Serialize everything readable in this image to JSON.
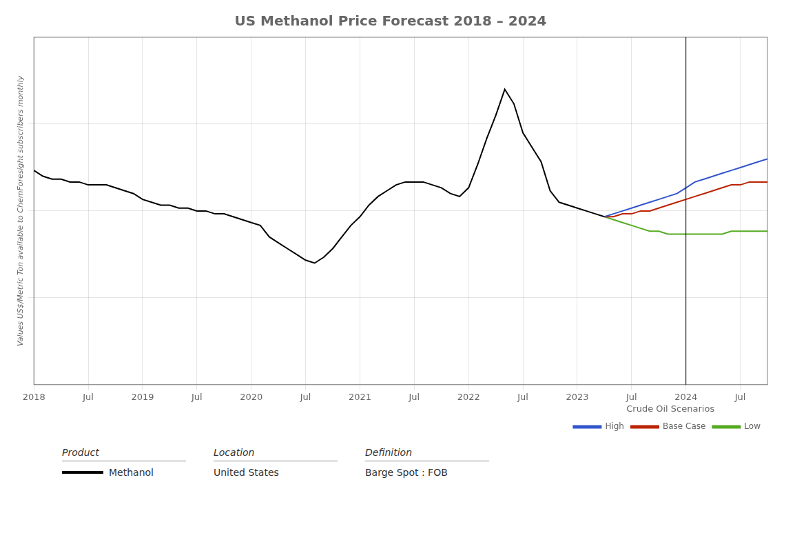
{
  "chart_data": {
    "type": "line",
    "title": "US Methanol Price Forecast 2018 – 2024",
    "ylabel": "Values US$/Metric Ton available to ChemForesight subscribers monthly",
    "series": [
      {
        "color": "#000000",
        "x": [
          2018.0,
          2018.083,
          2018.167,
          2018.25,
          2018.333,
          2018.417,
          2018.5,
          2018.583,
          2018.667,
          2018.75,
          2018.833,
          2018.917,
          2019.0,
          2019.083,
          2019.167,
          2019.25,
          2019.333,
          2019.417,
          2019.5,
          2019.583,
          2019.667,
          2019.75,
          2019.833,
          2019.917,
          2020.0,
          2020.083,
          2020.167,
          2020.25,
          2020.333,
          2020.417,
          2020.5,
          2020.583,
          2020.667,
          2020.75,
          2020.833,
          2020.917,
          2021.0,
          2021.083,
          2021.167,
          2021.25,
          2021.333,
          2021.417,
          2021.5,
          2021.583,
          2021.667,
          2021.75,
          2021.833,
          2021.917,
          2022.0,
          2022.083,
          2022.167,
          2022.25,
          2022.333,
          2022.417,
          2022.5,
          2022.583,
          2022.667,
          2022.75,
          2022.833,
          2022.917,
          2023.0,
          2023.083,
          2023.167,
          2023.25
        ],
        "values": [
          74,
          72,
          71,
          71,
          70,
          70,
          69,
          69,
          69,
          68,
          67,
          66,
          64,
          63,
          62,
          62,
          61,
          61,
          60,
          60,
          59,
          59,
          58,
          57,
          56,
          55,
          51,
          49,
          47,
          45,
          43,
          42,
          44,
          47,
          51,
          55,
          58,
          62,
          65,
          67,
          69,
          70,
          70,
          70,
          69,
          68,
          66,
          65,
          68,
          76,
          85,
          93,
          102,
          97,
          87,
          82,
          77,
          67,
          63,
          62,
          61,
          60,
          59,
          58
        ]
      },
      {
        "name": "High",
        "color": "#3355cc",
        "x": [
          2023.25,
          2023.333,
          2023.417,
          2023.5,
          2023.583,
          2023.667,
          2023.75,
          2023.833,
          2023.917,
          2024.0,
          2024.083,
          2024.167,
          2024.25,
          2024.333,
          2024.417,
          2024.5,
          2024.583,
          2024.667,
          2024.75
        ],
        "values": [
          58,
          59,
          60,
          61,
          62,
          63,
          64,
          65,
          66,
          68,
          70,
          71,
          72,
          73,
          74,
          75,
          76,
          77,
          78
        ]
      },
      {
        "name": "Base Case",
        "color": "#bb2200",
        "x": [
          2023.25,
          2023.333,
          2023.417,
          2023.5,
          2023.583,
          2023.667,
          2023.75,
          2023.833,
          2023.917,
          2024.0,
          2024.083,
          2024.167,
          2024.25,
          2024.333,
          2024.417,
          2024.5,
          2024.583,
          2024.667,
          2024.75
        ],
        "values": [
          58,
          58,
          59,
          59,
          60,
          60,
          61,
          62,
          63,
          64,
          65,
          66,
          67,
          68,
          69,
          69,
          70,
          70,
          70
        ]
      },
      {
        "name": "Low",
        "color": "#55aa22",
        "x": [
          2023.25,
          2023.333,
          2023.417,
          2023.5,
          2023.583,
          2023.667,
          2023.75,
          2023.833,
          2023.917,
          2024.0,
          2024.083,
          2024.167,
          2024.25,
          2024.333,
          2024.417,
          2024.5,
          2024.583,
          2024.667,
          2024.75
        ],
        "values": [
          58,
          57,
          56,
          55,
          54,
          53,
          53,
          52,
          52,
          52,
          52,
          52,
          52,
          52,
          53,
          53,
          53,
          53,
          53
        ]
      }
    ],
    "xlim": [
      2018.0,
      2024.75
    ],
    "xticks": [
      2018,
      {
        "value": 2018.5,
        "label": "Jul"
      },
      2019,
      {
        "value": 2019.5,
        "label": "Jul"
      },
      2020,
      {
        "value": 2020.5,
        "label": "Jul"
      },
      2021,
      {
        "value": 2021.5,
        "label": "Jul"
      },
      2022,
      {
        "value": 2022.5,
        "label": "Jul"
      },
      2023,
      {
        "value": 2023.5,
        "label": "Jul"
      },
      2024,
      {
        "value": 2024.5,
        "label": "Jul"
      }
    ],
    "ylim": [
      0,
      120
    ],
    "yticks": [
      30,
      60,
      90
    ],
    "tick_labels": "x",
    "grid": true,
    "marker": "none",
    "legend": "bottom",
    "legend_title": "Crude Oil Scenarios",
    "separator_x": 2024.0,
    "annotations": [
      {
        "heading": "Product",
        "text": "Methanol"
      },
      {
        "heading": "Location",
        "text": "United States"
      },
      {
        "heading": "Definition",
        "text": "Barge Spot : FOB"
      }
    ]
  }
}
